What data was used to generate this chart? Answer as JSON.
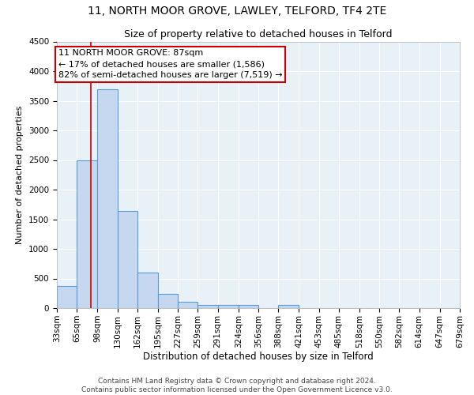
{
  "title1": "11, NORTH MOOR GROVE, LAWLEY, TELFORD, TF4 2TE",
  "title2": "Size of property relative to detached houses in Telford",
  "xlabel": "Distribution of detached houses by size in Telford",
  "ylabel": "Number of detached properties",
  "bin_edges": [
    33,
    65,
    98,
    130,
    162,
    195,
    227,
    259,
    291,
    324,
    356,
    388,
    421,
    453,
    485,
    518,
    550,
    582,
    614,
    647,
    679
  ],
  "bar_heights": [
    375,
    2500,
    3700,
    1640,
    600,
    240,
    105,
    60,
    50,
    50,
    0,
    60,
    0,
    0,
    0,
    0,
    0,
    0,
    0,
    0
  ],
  "bar_color": "#c5d8f0",
  "bar_edge_color": "#5b9bd5",
  "property_size": 87,
  "red_line_color": "#cc0000",
  "annotation_line1": "11 NORTH MOOR GROVE: 87sqm",
  "annotation_line2": "← 17% of detached houses are smaller (1,586)",
  "annotation_line3": "82% of semi-detached houses are larger (7,519) →",
  "annotation_box_color": "#ffffff",
  "annotation_box_edge_color": "#cc0000",
  "ylim": [
    0,
    4500
  ],
  "yticks": [
    0,
    500,
    1000,
    1500,
    2000,
    2500,
    3000,
    3500,
    4000,
    4500
  ],
  "background_color": "#e8f0f8",
  "footer_text": "Contains HM Land Registry data © Crown copyright and database right 2024.\nContains public sector information licensed under the Open Government Licence v3.0.",
  "title1_fontsize": 10,
  "title2_fontsize": 9,
  "xlabel_fontsize": 8.5,
  "ylabel_fontsize": 8,
  "annotation_fontsize": 8,
  "footer_fontsize": 6.5,
  "tick_fontsize": 7.5
}
